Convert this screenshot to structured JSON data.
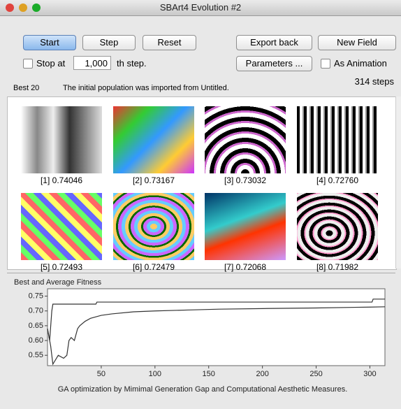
{
  "window": {
    "title": "SBArt4 Evolution #2"
  },
  "buttons": {
    "start": "Start",
    "step": "Step",
    "reset": "Reset",
    "export": "Export back",
    "new_field": "New Field",
    "parameters": "Parameters ..."
  },
  "stop": {
    "label": "Stop at",
    "value": "1,000",
    "suffix": "th step."
  },
  "animation": "As Animation",
  "steps": "314 steps",
  "status": {
    "best": "Best 20",
    "message": "The initial population was imported from Untitled."
  },
  "images": [
    "[1] 0.74046",
    "[2] 0.73167",
    "[3] 0.73032",
    "[4] 0.72760",
    "[5] 0.72493",
    "[6] 0.72479",
    "[7] 0.72068",
    "[8] 0.71982"
  ],
  "chart_data": {
    "type": "line",
    "title": "Best and Average Fitness",
    "caption": "GA optimization by Mimimal Generation Gap and Computational Aesthetic Measures.",
    "xlim": [
      0,
      314
    ],
    "ylim": [
      0.515,
      0.775
    ],
    "xticks": [
      50,
      100,
      150,
      200,
      250,
      300
    ],
    "yticks": [
      0.55,
      {
        "value": 0.6,
        "label": "0.60"
      },
      0.65,
      {
        "value": 0.7,
        "label": "0.70"
      },
      0.75
    ],
    "series": [
      {
        "color": "#333333",
        "x": [
          0,
          2,
          4,
          5,
          45,
          46,
          302,
          303,
          314
        ],
        "values": [
          0.64,
          0.6,
          0.7,
          0.723,
          0.723,
          0.73,
          0.73,
          0.74,
          0.74
        ]
      },
      {
        "color": "#333333",
        "x": [
          0,
          3,
          5,
          10,
          15,
          18,
          20,
          22,
          25,
          28,
          30,
          35,
          40,
          50,
          60,
          80,
          100,
          130,
          160,
          200,
          250,
          300,
          314
        ],
        "values": [
          0.64,
          0.58,
          0.52,
          0.55,
          0.54,
          0.55,
          0.6,
          0.61,
          0.6,
          0.64,
          0.65,
          0.665,
          0.675,
          0.685,
          0.69,
          0.697,
          0.7,
          0.703,
          0.706,
          0.708,
          0.71,
          0.713,
          0.714
        ]
      }
    ]
  }
}
